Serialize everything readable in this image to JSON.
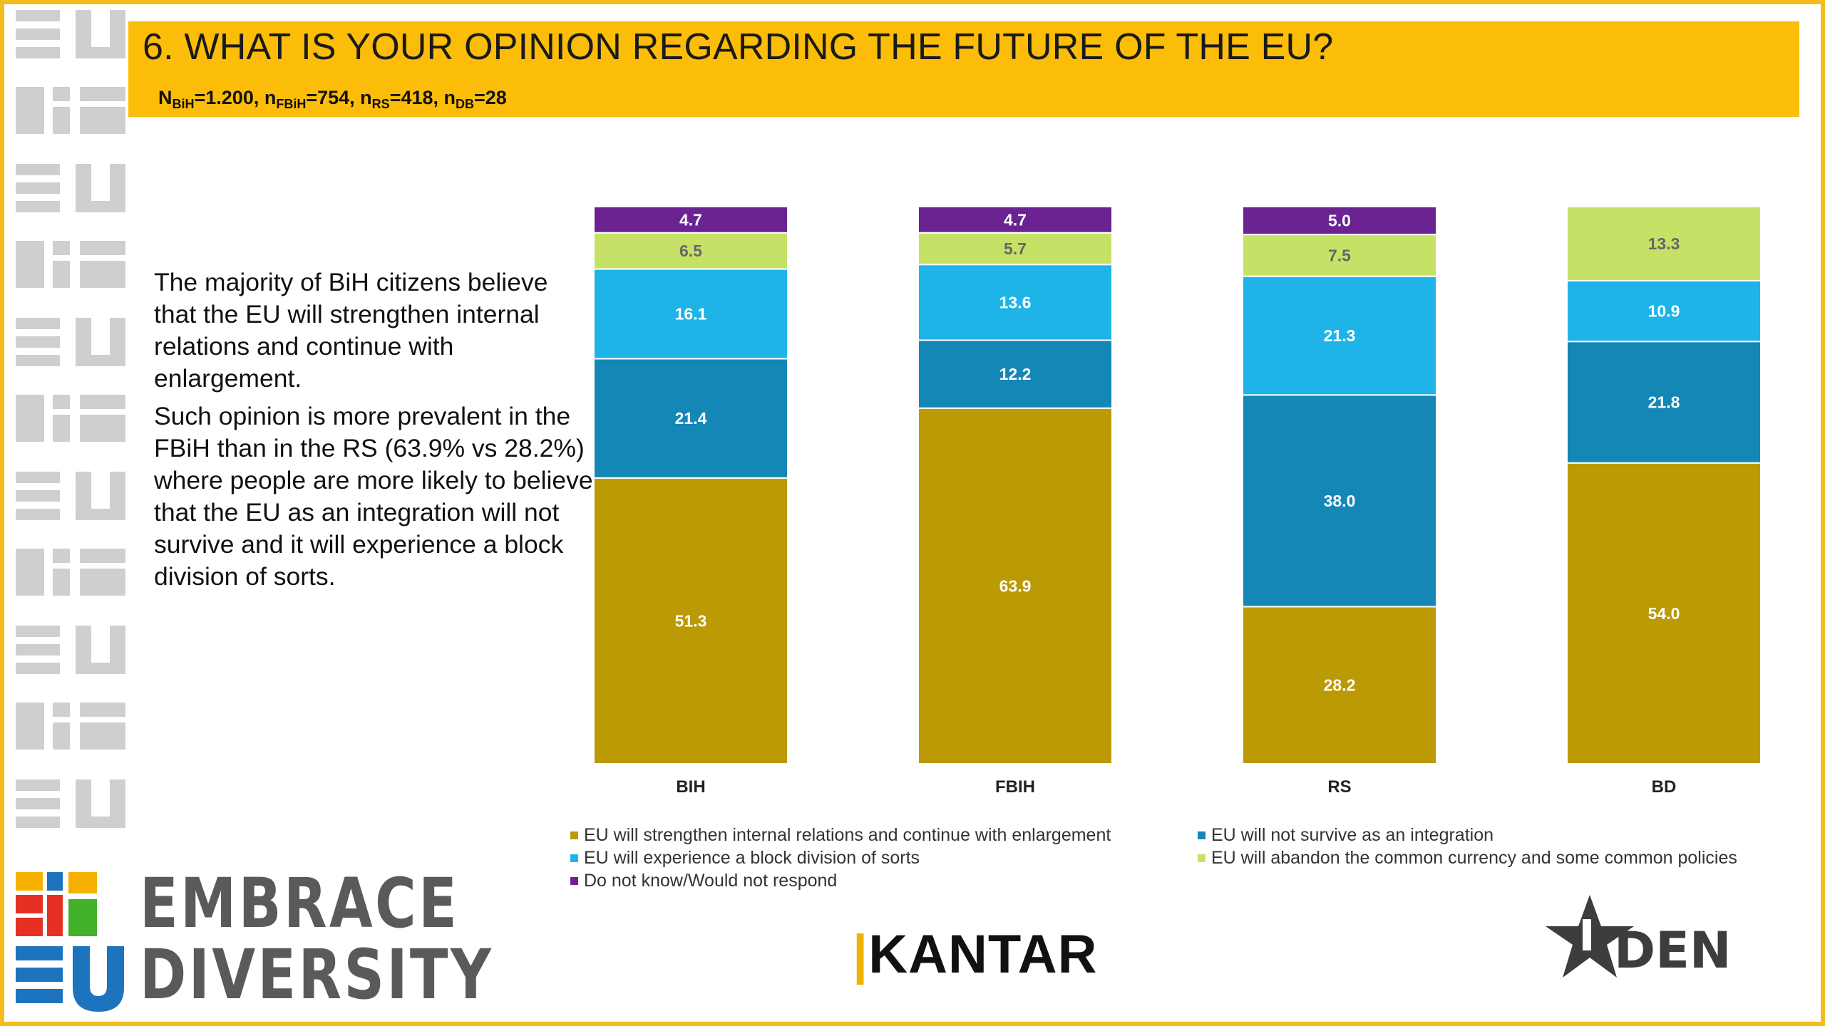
{
  "header": {
    "title": "6. WHAT IS YOUR OPINION REGARDING THE FUTURE OF THE EU?",
    "sample": [
      {
        "prefix": "N",
        "sub": "BiH",
        "value": "=1.200, "
      },
      {
        "prefix": "n",
        "sub": "FBiH",
        "value": "=754, "
      },
      {
        "prefix": "n",
        "sub": "RS",
        "value": "=418, "
      },
      {
        "prefix": "n",
        "sub": "DB",
        "value": "=28"
      }
    ]
  },
  "commentary": {
    "p1": "The majority of BiH citizens believe that the EU will strengthen internal relations and continue with enlargement.",
    "p2": "Such opinion is more prevalent in the FBiH than in the RS (63.9% vs 28.2%) where people are more likely to believe that the EU as an integration will not survive and it will experience a block division of sorts."
  },
  "chart_data": {
    "type": "bar",
    "stacked": true,
    "categories": [
      "BIH",
      "FBIH",
      "RS",
      "BD"
    ],
    "series": [
      {
        "name": "EU will strengthen internal relations and continue with enlargement",
        "color": "#bb9a06",
        "values": [
          51.3,
          63.9,
          28.2,
          54.0
        ]
      },
      {
        "name": "EU will not survive as an integration",
        "color": "#1487b6",
        "values": [
          21.4,
          12.2,
          38.0,
          21.8
        ]
      },
      {
        "name": "EU will experience a block division of sorts",
        "color": "#1eb4e8",
        "values": [
          16.1,
          13.6,
          21.3,
          10.9
        ]
      },
      {
        "name": "EU will abandon the common currency and some common policies",
        "color": "#c6e266",
        "values": [
          6.5,
          5.7,
          7.5,
          13.3
        ]
      },
      {
        "name": "Do not know/Would not respond",
        "color": "#6a2391",
        "values": [
          4.7,
          4.7,
          5.0,
          0.0
        ]
      }
    ],
    "ylim": [
      0,
      100
    ],
    "legend_position": "bottom"
  },
  "legend_order": [
    0,
    1,
    2,
    3,
    4
  ],
  "logos": {
    "kantar": "KANTAR",
    "embrace_line1": "EMBRACE",
    "embrace_line2": "DIVERSITY",
    "den": "DEN"
  },
  "colors": {
    "accent": "#fcbd09",
    "frame": "#f4bb1c"
  }
}
